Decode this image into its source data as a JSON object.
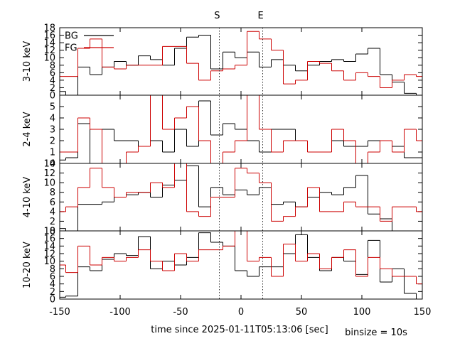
{
  "chart_data": {
    "type": "line",
    "step": true,
    "xlabel": "time since 2025-01-11T05:13:06 [sec]",
    "binsize_label": "binsize = 10s",
    "xlim": [
      -150,
      150
    ],
    "x_ticks": [
      -150,
      -100,
      -50,
      0,
      50,
      100,
      150
    ],
    "markers": [
      {
        "label": "S",
        "x": -18
      },
      {
        "label": "E",
        "x": 18
      }
    ],
    "legend": {
      "position": "top-left",
      "entries": [
        {
          "name": "BG",
          "color": "#000000"
        },
        {
          "name": "FG",
          "color": "#cc0000"
        }
      ]
    },
    "series_colors": {
      "BG": "#000000",
      "FG": "#cc0000"
    },
    "bin_edges": [
      -155,
      -145,
      -135,
      -125,
      -115,
      -105,
      -95,
      -85,
      -75,
      -65,
      -55,
      -45,
      -35,
      -25,
      -15,
      -5,
      5,
      15,
      25,
      35,
      45,
      55,
      65,
      75,
      85,
      95,
      105,
      115,
      125,
      135,
      145,
      155
    ],
    "panels": [
      {
        "ylabel": "3-10 keV",
        "ylim": [
          0,
          18
        ],
        "y_ticks": [
          0,
          2,
          4,
          6,
          8,
          10,
          12,
          14,
          16,
          18
        ],
        "series": [
          {
            "name": "BG",
            "values": [
              1,
              0,
              7.5,
              5.5,
              7.5,
              9,
              8,
              10.5,
              9.5,
              8,
              12.5,
              15.5,
              16,
              7,
              11.5,
              10,
              11.5,
              7.5,
              9.5,
              8,
              6.5,
              8,
              9,
              9.5,
              9,
              11,
              12.5,
              5.5,
              3.5,
              0.5,
              0
            ]
          },
          {
            "name": "FG",
            "values": [
              5,
              5,
              12.5,
              15,
              7.5,
              7,
              8,
              8,
              8,
              13,
              13,
              8.5,
              4,
              6.5,
              7,
              8,
              17,
              15,
              12,
              3,
              4,
              9,
              8.5,
              6.5,
              4,
              6,
              5,
              2,
              4,
              5.5,
              5
            ]
          }
        ]
      },
      {
        "ylabel": "2-4 keV",
        "ylim": [
          0,
          6
        ],
        "y_ticks": [
          0,
          1,
          2,
          3,
          4,
          5
        ],
        "series": [
          {
            "name": "BG",
            "values": [
              0.3,
              0.5,
              3.5,
              0,
              3,
              2,
              2,
              1.5,
              2,
              1,
              3,
              1.5,
              5.5,
              2.5,
              3.5,
              3,
              2,
              1,
              3,
              3,
              2,
              1,
              1,
              2,
              1.5,
              1.5,
              2,
              2,
              1.5,
              0.5,
              0.5
            ]
          },
          {
            "name": "FG",
            "values": [
              1,
              1,
              4,
              3,
              0,
              0,
              1,
              1.5,
              6,
              3,
              4,
              5,
              2,
              0,
              1,
              2,
              6,
              3,
              1,
              2,
              2,
              1,
              1,
              3,
              2,
              0,
              1,
              2,
              1,
              3,
              2
            ]
          }
        ]
      },
      {
        "ylabel": "4-10 keV",
        "ylim": [
          0,
          14
        ],
        "y_ticks": [
          0,
          2,
          4,
          6,
          8,
          10,
          12,
          14
        ],
        "series": [
          {
            "name": "BG",
            "values": [
              0.5,
              0,
              5.5,
              5.5,
              6,
              7,
              7.5,
              8,
              7,
              9.5,
              10.5,
              13.5,
              5,
              9,
              7.5,
              8.5,
              7.5,
              9,
              5.5,
              6,
              5,
              7,
              8,
              7.5,
              9,
              11.5,
              3.5,
              2.5,
              0,
              0,
              0
            ]
          },
          {
            "name": "FG",
            "values": [
              4,
              5,
              9,
              13,
              9,
              7,
              8,
              8,
              10,
              9,
              14,
              4,
              3,
              7,
              7,
              13,
              12,
              10,
              2,
              3,
              5,
              9,
              4,
              4,
              6,
              5,
              5,
              2,
              5,
              5,
              4
            ]
          }
        ]
      },
      {
        "ylabel": "10-20 keV",
        "ylim": [
          0,
          18
        ],
        "y_ticks": [
          0,
          2,
          4,
          6,
          8,
          10,
          12,
          14,
          16,
          18
        ],
        "series": [
          {
            "name": "BG",
            "values": [
              0.5,
              0.8,
              8.5,
              7.5,
              10.5,
              12,
              11.5,
              16.5,
              8,
              10,
              9,
              11,
              17.5,
              15,
              14,
              7.5,
              6,
              8.5,
              8.5,
              12,
              17,
              11,
              7.5,
              11,
              10,
              6.5,
              15.5,
              4.5,
              8,
              1.5,
              0
            ]
          },
          {
            "name": "FG",
            "values": [
              9,
              7,
              14,
              9,
              11,
              10,
              11,
              13,
              10,
              7.5,
              12,
              10,
              13,
              13,
              14,
              18,
              10,
              11,
              6,
              14.5,
              10,
              12,
              8,
              11,
              13,
              6,
              11,
              8,
              6,
              6,
              4
            ]
          }
        ]
      }
    ]
  }
}
